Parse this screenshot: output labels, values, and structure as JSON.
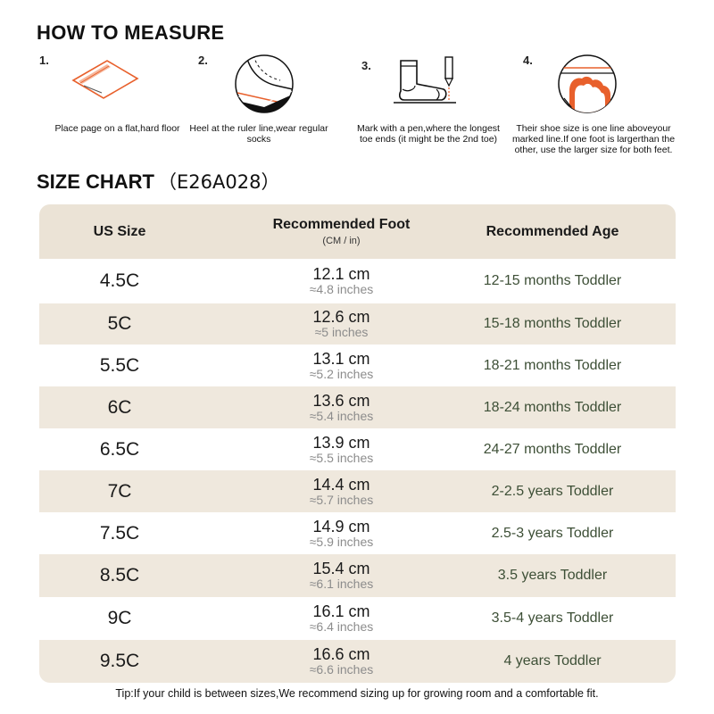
{
  "measure": {
    "title": "HOW TO MEASURE",
    "steps": [
      {
        "num": "1.",
        "text": "Place page on a flat,hard floor",
        "icon": "paper-on-floor-icon"
      },
      {
        "num": "2.",
        "text": "Heel at the ruler line,wear regular socks",
        "icon": "heel-on-line-icon"
      },
      {
        "num": "3.",
        "text": "Mark with a pen,where the longest toe ends (it might be the 2nd toe)",
        "icon": "sock-and-pen-icon"
      },
      {
        "num": "4.",
        "text": "Their shoe size is one line aboveyour marked line.If one foot is largerthan the other, use the larger size for both feet.",
        "icon": "toe-above-line-icon"
      }
    ]
  },
  "chart": {
    "title": "SIZE CHART",
    "code": "（E26A028）",
    "headers": {
      "size": "US Size",
      "foot": "Recommended Foot",
      "foot_sub": "(CM / in)",
      "age": "Recommended Age"
    },
    "rows": [
      {
        "size": "4.5C",
        "cm": "12.1 cm",
        "inch": "≈4.8 inches",
        "age": "12-15 months Toddler"
      },
      {
        "size": "5C",
        "cm": "12.6 cm",
        "inch": "≈5 inches",
        "age": "15-18 months Toddler"
      },
      {
        "size": "5.5C",
        "cm": "13.1 cm",
        "inch": "≈5.2 inches",
        "age": "18-21 months Toddler"
      },
      {
        "size": "6C",
        "cm": "13.6 cm",
        "inch": "≈5.4 inches",
        "age": "18-24 months Toddler"
      },
      {
        "size": "6.5C",
        "cm": "13.9 cm",
        "inch": "≈5.5 inches",
        "age": "24-27 months Toddler"
      },
      {
        "size": "7C",
        "cm": "14.4 cm",
        "inch": "≈5.7 inches",
        "age": "2-2.5 years Toddler"
      },
      {
        "size": "7.5C",
        "cm": "14.9 cm",
        "inch": "≈5.9 inches",
        "age": "2.5-3 years Toddler"
      },
      {
        "size": "8.5C",
        "cm": "15.4 cm",
        "inch": "≈6.1 inches",
        "age": "3.5 years Toddler"
      },
      {
        "size": "9C",
        "cm": "16.1 cm",
        "inch": "≈6.4 inches",
        "age": "3.5-4 years Toddler"
      },
      {
        "size": "9.5C",
        "cm": "16.6 cm",
        "inch": "≈6.6 inches",
        "age": "4 years Toddler"
      }
    ]
  },
  "tip": "Tip:If your child is between sizes,We recommend sizing up for growing room and a comfortable fit.",
  "colors": {
    "accent": "#e8602c",
    "row_shade": "#efe8dd",
    "header_bg": "#ebe3d6",
    "age_text": "#3d4f36"
  }
}
